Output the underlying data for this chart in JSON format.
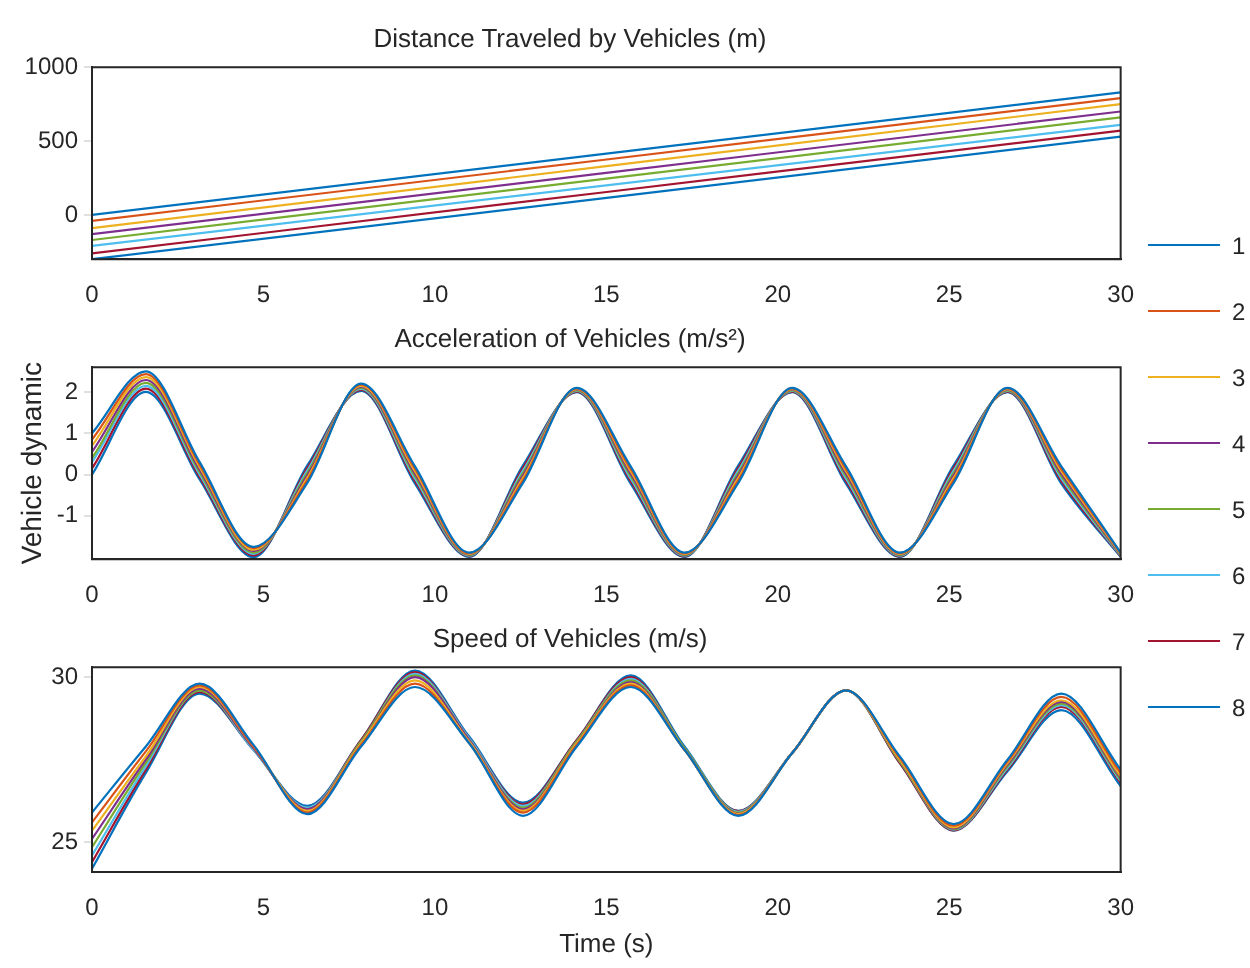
{
  "chart_data": [
    {
      "type": "line",
      "title": "Distance Traveled by Vehicles (m)",
      "x": [
        0,
        30
      ],
      "xlim": [
        0,
        30
      ],
      "xticks": [
        0,
        5,
        10,
        15,
        20,
        25,
        30
      ],
      "ylim": [
        -300,
        1000
      ],
      "yticks": [
        0,
        500,
        1000
      ],
      "marker": "none",
      "legend": "right",
      "series": [
        {
          "name": "1",
          "color": "#0072bd",
          "values": [
            0,
            830
          ]
        },
        {
          "name": "2",
          "color": "#d95319",
          "values": [
            -40,
            790
          ]
        },
        {
          "name": "3",
          "color": "#edb120",
          "values": [
            -90,
            750
          ]
        },
        {
          "name": "4",
          "color": "#7e2f8e",
          "values": [
            -130,
            700
          ]
        },
        {
          "name": "5",
          "color": "#77ac30",
          "values": [
            -170,
            660
          ]
        },
        {
          "name": "6",
          "color": "#4dbeee",
          "values": [
            -210,
            610
          ]
        },
        {
          "name": "7",
          "color": "#a2142f",
          "values": [
            -260,
            570
          ]
        },
        {
          "name": "8",
          "color": "#0072bd",
          "values": [
            -300,
            530
          ]
        }
      ]
    },
    {
      "type": "line",
      "title": "Acceleration of Vehicles (m/s²)",
      "ylabel": "Vehicle dynamic",
      "x": [
        0,
        1.57,
        3.14,
        4.71,
        6.28,
        7.85,
        9.42,
        11.0,
        12.57,
        14.14,
        15.71,
        17.28,
        18.85,
        20.42,
        21.99,
        23.56,
        25.13,
        26.7,
        28.27,
        30
      ],
      "xlim": [
        0,
        30
      ],
      "xticks": [
        0,
        5,
        10,
        15,
        20,
        25,
        30
      ],
      "ylim": [
        -2.05,
        2.6
      ],
      "yticks": [
        -1,
        0,
        1,
        2
      ],
      "marker": "none",
      "series": [
        {
          "name": "1",
          "color": "#0072bd",
          "values": [
            1.0,
            2.5,
            0.3,
            -1.75,
            -0.2,
            2.2,
            0.2,
            -1.89,
            -0.2,
            2.1,
            0.2,
            -1.89,
            -0.2,
            2.1,
            0.2,
            -1.89,
            -0.2,
            2.1,
            0.2,
            -1.89
          ]
        },
        {
          "name": "2",
          "color": "#d95319",
          "values": [
            0.85,
            2.43,
            0.24,
            -1.78,
            -0.14,
            2.175,
            0.14,
            -1.905,
            -0.14,
            2.085,
            0.14,
            -1.905,
            -0.14,
            2.085,
            0.14,
            -1.905,
            -0.14,
            2.085,
            0.14,
            -1.905
          ]
        },
        {
          "name": "3",
          "color": "#edb120",
          "values": [
            0.7,
            2.36,
            0.18,
            -1.82,
            -0.08,
            2.15,
            0.08,
            -1.92,
            -0.08,
            2.07,
            0.08,
            -1.92,
            -0.08,
            2.07,
            0.08,
            -1.92,
            -0.08,
            2.07,
            0.08,
            -1.92
          ]
        },
        {
          "name": "4",
          "color": "#7e2f8e",
          "values": [
            0.55,
            2.29,
            0.12,
            -1.85,
            -0.02,
            2.125,
            0.02,
            -1.935,
            -0.02,
            2.055,
            0.02,
            -1.935,
            -0.02,
            2.055,
            0.02,
            -1.935,
            -0.02,
            2.055,
            0.02,
            -1.935
          ]
        },
        {
          "name": "5",
          "color": "#77ac30",
          "values": [
            0.4,
            2.22,
            0.06,
            -1.89,
            0.04,
            2.1,
            -0.04,
            -1.95,
            0.04,
            2.04,
            -0.04,
            -1.95,
            0.04,
            2.04,
            -0.04,
            -1.95,
            0.04,
            2.04,
            -0.04,
            -1.95
          ]
        },
        {
          "name": "6",
          "color": "#4dbeee",
          "values": [
            0.3,
            2.15,
            0,
            -1.92,
            0.1,
            2.075,
            -0.1,
            -1.965,
            0.1,
            2.025,
            -0.1,
            -1.965,
            0.1,
            2.025,
            -0.1,
            -1.965,
            0.1,
            2.025,
            -0.1,
            -1.965
          ]
        },
        {
          "name": "7",
          "color": "#a2142f",
          "values": [
            0.15,
            2.08,
            -0.06,
            -1.96,
            0.16,
            2.05,
            -0.16,
            -1.98,
            0.16,
            2.01,
            -0.16,
            -1.98,
            0.16,
            2.01,
            -0.16,
            -1.98,
            0.16,
            2.01,
            -0.16,
            -1.98
          ]
        },
        {
          "name": "8",
          "color": "#0072bd",
          "values": [
            0,
            2.0,
            -0.12,
            -2.0,
            0.22,
            2.025,
            -0.22,
            -1.995,
            0.22,
            1.995,
            -0.22,
            -1.995,
            0.22,
            1.995,
            -0.22,
            -1.995,
            0.22,
            1.995,
            -0.22,
            -1.995
          ]
        }
      ]
    },
    {
      "type": "line",
      "title": "Speed of Vehicles (m/s)",
      "xlabel": "Time (s)",
      "x": [
        0,
        1.57,
        3.14,
        4.71,
        6.28,
        7.85,
        9.42,
        11.0,
        12.57,
        14.14,
        15.71,
        17.28,
        18.85,
        20.42,
        21.99,
        23.56,
        25.13,
        26.7,
        28.27,
        30
      ],
      "xlim": [
        0,
        30
      ],
      "xticks": [
        0,
        5,
        10,
        15,
        20,
        25,
        30
      ],
      "ylim": [
        24.1,
        30.3
      ],
      "yticks": [
        25,
        30
      ],
      "marker": "none",
      "series": [
        {
          "name": "1",
          "color": "#0072bd",
          "values": [
            25.9,
            27.9,
            29.8,
            27.95,
            25.85,
            27.9,
            29.7,
            28.0,
            25.8,
            27.9,
            29.7,
            27.8,
            25.8,
            27.7,
            29.6,
            27.6,
            25.55,
            27.5,
            29.5,
            27.2
          ]
        },
        {
          "name": "2",
          "color": "#d95319",
          "values": [
            25.6,
            27.75,
            29.75,
            27.9,
            25.9,
            27.95,
            29.8,
            28.0,
            25.9,
            27.95,
            29.75,
            27.8,
            25.82,
            27.7,
            29.6,
            27.55,
            25.5,
            27.45,
            29.4,
            27.1
          ]
        },
        {
          "name": "3",
          "color": "#edb120",
          "values": [
            25.35,
            27.6,
            29.7,
            27.9,
            25.95,
            28.0,
            29.9,
            28.05,
            25.95,
            28.0,
            29.8,
            27.8,
            25.85,
            27.7,
            29.6,
            27.5,
            25.45,
            27.4,
            29.3,
            27.0
          ]
        },
        {
          "name": "4",
          "color": "#7e2f8e",
          "values": [
            25.1,
            27.5,
            29.65,
            27.85,
            26.0,
            28.0,
            30.0,
            28.1,
            26.0,
            28.0,
            29.85,
            27.8,
            25.87,
            27.7,
            29.6,
            27.5,
            25.42,
            27.35,
            29.25,
            26.95
          ]
        },
        {
          "name": "5",
          "color": "#77ac30",
          "values": [
            24.85,
            27.4,
            29.6,
            27.85,
            26.0,
            28.05,
            30.05,
            28.1,
            26.05,
            28.05,
            29.9,
            27.85,
            25.9,
            27.7,
            29.6,
            27.45,
            25.4,
            27.3,
            29.2,
            26.9
          ]
        },
        {
          "name": "6",
          "color": "#4dbeee",
          "values": [
            24.6,
            27.3,
            29.6,
            27.8,
            26.05,
            28.05,
            30.1,
            28.15,
            26.1,
            28.05,
            29.95,
            27.85,
            25.92,
            27.7,
            29.6,
            27.45,
            25.38,
            27.25,
            29.15,
            26.85
          ]
        },
        {
          "name": "7",
          "color": "#a2142f",
          "values": [
            24.4,
            27.2,
            29.55,
            27.8,
            26.05,
            28.1,
            30.15,
            28.15,
            26.15,
            28.1,
            30.0,
            27.85,
            25.94,
            27.7,
            29.6,
            27.4,
            25.36,
            27.2,
            29.1,
            26.8
          ]
        },
        {
          "name": "8",
          "color": "#0072bd",
          "values": [
            24.2,
            27.1,
            29.5,
            27.8,
            26.1,
            28.1,
            30.2,
            28.2,
            26.2,
            28.1,
            30.05,
            27.9,
            25.95,
            27.7,
            29.6,
            27.4,
            25.35,
            27.15,
            29.0,
            26.7
          ]
        }
      ]
    }
  ]
}
